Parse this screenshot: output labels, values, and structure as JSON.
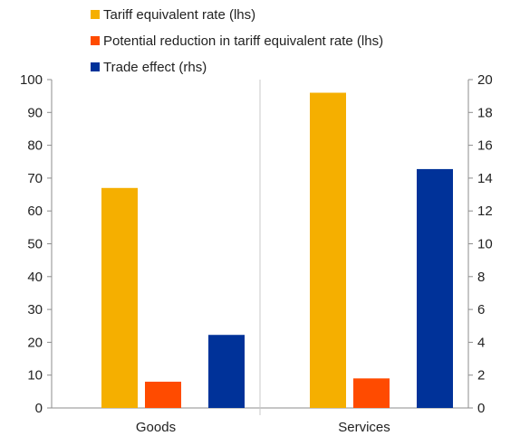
{
  "chart_data": {
    "type": "bar",
    "categories": [
      "Goods",
      "Services"
    ],
    "series": [
      {
        "name": "Tariff equivalent rate (lhs)",
        "axis": "left",
        "color": "#F5AF00",
        "values": [
          67,
          96
        ]
      },
      {
        "name": "Potential reduction in tariff equivalent rate (lhs)",
        "axis": "left",
        "color": "#FF4B00",
        "values": [
          8,
          9
        ]
      },
      {
        "name": "Trade effect (rhs)",
        "axis": "right",
        "color": "#003299",
        "values": [
          4.45,
          14.55
        ]
      }
    ],
    "y_left": {
      "min": 0,
      "max": 100,
      "ticks": [
        "0",
        "10",
        "20",
        "30",
        "40",
        "50",
        "60",
        "70",
        "80",
        "90",
        "100"
      ]
    },
    "y_right": {
      "min": 0,
      "max": 20,
      "ticks": [
        "0",
        "2",
        "4",
        "6",
        "8",
        "10",
        "12",
        "14",
        "16",
        "18",
        "20"
      ]
    },
    "legend_position": "top-left",
    "grid": false
  }
}
